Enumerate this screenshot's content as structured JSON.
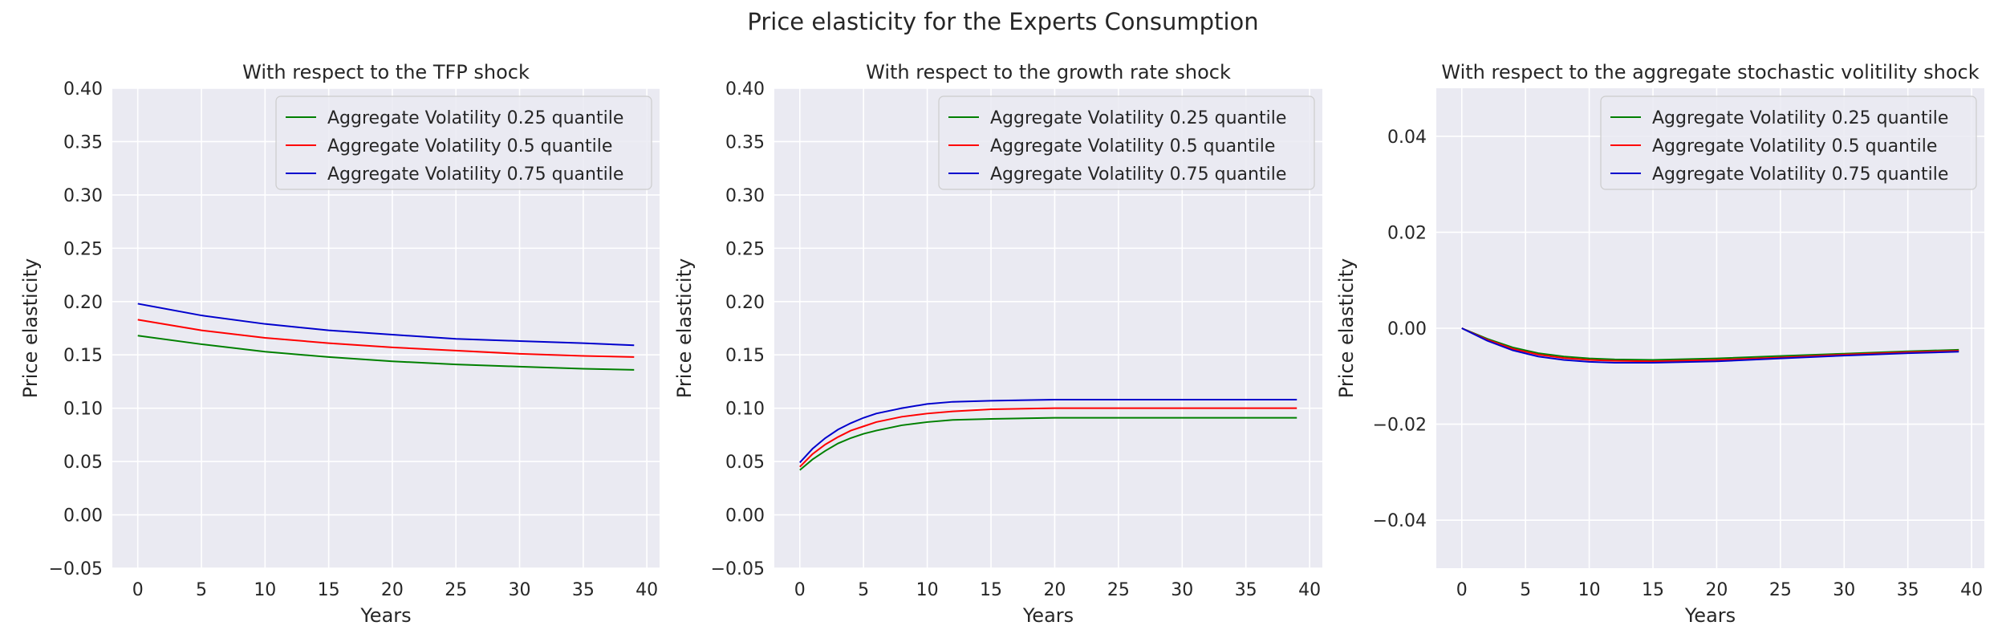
{
  "figure": {
    "title": "Price elasticity for the Experts Consumption"
  },
  "colors": {
    "background": "#eaeaf2",
    "grid": "#ffffff",
    "text": "#262626",
    "q25": "#008000",
    "q50": "#ff0000",
    "q75": "#0000cd"
  },
  "chart_data": [
    {
      "type": "line",
      "title": "With respect to the TFP shock",
      "xlabel": "Years",
      "ylabel": "Price elasticity",
      "xlim": [
        -2,
        41
      ],
      "ylim": [
        -0.05,
        0.4
      ],
      "xticks": [
        0,
        5,
        10,
        15,
        20,
        25,
        30,
        35,
        40
      ],
      "yticks": [
        -0.05,
        0.0,
        0.05,
        0.1,
        0.15,
        0.2,
        0.25,
        0.3,
        0.35,
        0.4
      ],
      "ytick_labels": [
        "−0.05",
        "0.00",
        "0.05",
        "0.10",
        "0.15",
        "0.20",
        "0.25",
        "0.30",
        "0.35",
        "0.40"
      ],
      "grid": true,
      "legend_position": "top-right",
      "x": [
        0,
        5,
        10,
        15,
        20,
        25,
        30,
        35,
        39
      ],
      "series": [
        {
          "name": "Aggregate Volatility 0.25 quantile",
          "color": "#008000",
          "values": [
            0.168,
            0.16,
            0.153,
            0.148,
            0.144,
            0.141,
            0.139,
            0.137,
            0.136
          ]
        },
        {
          "name": "Aggregate Volatility 0.5 quantile",
          "color": "#ff0000",
          "values": [
            0.183,
            0.173,
            0.166,
            0.161,
            0.157,
            0.154,
            0.151,
            0.149,
            0.148
          ]
        },
        {
          "name": "Aggregate Volatility 0.75 quantile",
          "color": "#0000cd",
          "values": [
            0.198,
            0.187,
            0.179,
            0.173,
            0.169,
            0.165,
            0.163,
            0.161,
            0.159
          ]
        }
      ]
    },
    {
      "type": "line",
      "title": "With respect to the growth rate shock",
      "xlabel": "Years",
      "ylabel": "Price elasticity",
      "xlim": [
        -2,
        41
      ],
      "ylim": [
        -0.05,
        0.4
      ],
      "xticks": [
        0,
        5,
        10,
        15,
        20,
        25,
        30,
        35,
        40
      ],
      "yticks": [
        -0.05,
        0.0,
        0.05,
        0.1,
        0.15,
        0.2,
        0.25,
        0.3,
        0.35,
        0.4
      ],
      "ytick_labels": [
        "−0.05",
        "0.00",
        "0.05",
        "0.10",
        "0.15",
        "0.20",
        "0.25",
        "0.30",
        "0.35",
        "0.40"
      ],
      "grid": true,
      "legend_position": "top-right",
      "x": [
        0,
        1,
        2,
        3,
        4,
        5,
        6,
        8,
        10,
        12,
        15,
        20,
        25,
        30,
        35,
        39
      ],
      "series": [
        {
          "name": "Aggregate Volatility 0.25 quantile",
          "color": "#008000",
          "values": [
            0.042,
            0.052,
            0.06,
            0.067,
            0.072,
            0.076,
            0.079,
            0.084,
            0.087,
            0.089,
            0.09,
            0.091,
            0.091,
            0.091,
            0.091,
            0.091
          ]
        },
        {
          "name": "Aggregate Volatility 0.5 quantile",
          "color": "#ff0000",
          "values": [
            0.045,
            0.057,
            0.066,
            0.073,
            0.079,
            0.083,
            0.087,
            0.092,
            0.095,
            0.097,
            0.099,
            0.1,
            0.1,
            0.1,
            0.1,
            0.1
          ]
        },
        {
          "name": "Aggregate Volatility 0.75 quantile",
          "color": "#0000cd",
          "values": [
            0.049,
            0.062,
            0.072,
            0.08,
            0.086,
            0.091,
            0.095,
            0.1,
            0.104,
            0.106,
            0.107,
            0.108,
            0.108,
            0.108,
            0.108,
            0.108
          ]
        }
      ]
    },
    {
      "type": "line",
      "title": "With respect to the aggregate stochastic volitility shock",
      "xlabel": "Years",
      "ylabel": "Price elasticity",
      "xlim": [
        -2,
        41
      ],
      "ylim": [
        -0.05,
        0.05
      ],
      "xticks": [
        0,
        5,
        10,
        15,
        20,
        25,
        30,
        35,
        40
      ],
      "yticks": [
        -0.04,
        -0.02,
        0.0,
        0.02,
        0.04
      ],
      "ytick_labels": [
        "−0.04",
        "−0.02",
        "0.00",
        "0.02",
        "0.04"
      ],
      "grid": true,
      "legend_position": "top-right",
      "x": [
        0,
        2,
        4,
        6,
        8,
        10,
        12,
        15,
        20,
        25,
        30,
        35,
        39
      ],
      "series": [
        {
          "name": "Aggregate Volatility 0.25 quantile",
          "color": "#008000",
          "values": [
            0.0,
            -0.0022,
            -0.004,
            -0.0052,
            -0.0059,
            -0.0063,
            -0.0065,
            -0.0066,
            -0.0063,
            -0.0058,
            -0.0053,
            -0.0048,
            -0.0045
          ]
        },
        {
          "name": "Aggregate Volatility 0.5 quantile",
          "color": "#ff0000",
          "values": [
            0.0,
            -0.0024,
            -0.0043,
            -0.0055,
            -0.0062,
            -0.0066,
            -0.0068,
            -0.0069,
            -0.0066,
            -0.0061,
            -0.0055,
            -0.005,
            -0.0047
          ]
        },
        {
          "name": "Aggregate Volatility 0.75 quantile",
          "color": "#0000cd",
          "values": [
            0.0,
            -0.0026,
            -0.0046,
            -0.0059,
            -0.0066,
            -0.007,
            -0.0072,
            -0.0072,
            -0.0069,
            -0.0063,
            -0.0057,
            -0.0052,
            -0.0049
          ]
        }
      ]
    }
  ]
}
